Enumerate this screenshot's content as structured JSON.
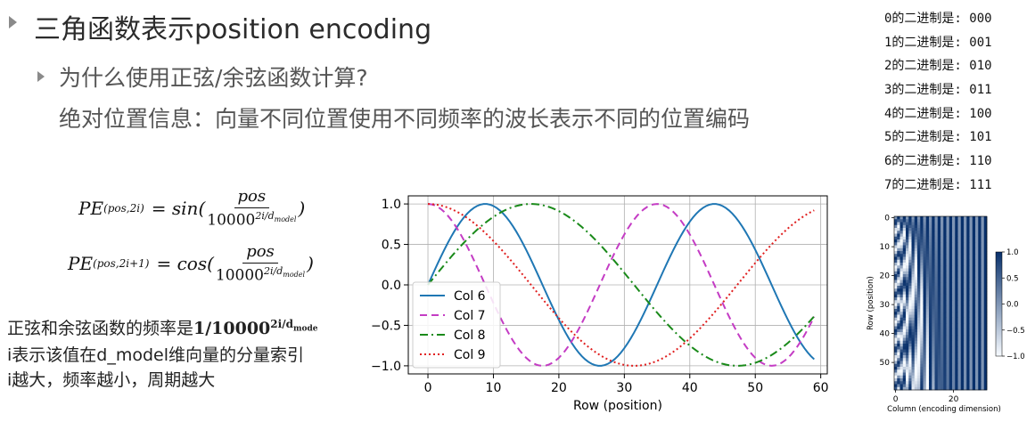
{
  "heading": {
    "title": "三角函数表示position encoding",
    "question": "为什么使用正弦/余弦函数计算?",
    "answer": "绝对位置信息：向量不同位置使用不同频率的波长表示不同的位置编码"
  },
  "binary_table": [
    "0的二进制是: 000",
    "1的二进制是: 001",
    "2的二进制是: 010",
    "3的二进制是: 011",
    "4的二进制是: 100",
    "5的二进制是: 101",
    "6的二进制是: 110",
    "7的二进制是: 111"
  ],
  "formulas": {
    "pe_sin_lhs": "PE",
    "pe_sin_sub": "(pos,2i)",
    "pe_sin_func": "= sin(",
    "pe_cos_lhs": "PE",
    "pe_cos_sub": "(pos,2i+1)",
    "pe_cos_func": "= cos(",
    "numerator": "pos",
    "denominator_base": "10000",
    "denominator_exp": "2i/d",
    "denominator_exp_sub": "model",
    "close": ")"
  },
  "notes": {
    "line1_prefix": "正弦和余弦函数的频率是",
    "line1_value": "1/10000",
    "line1_exp": "2i/d",
    "line1_exp_sub": "mode",
    "line2": "i表示该值在d_model维向量的分量索引",
    "line3": "i越大，频率越小，周期越大"
  },
  "chart_data": [
    {
      "type": "line",
      "xlabel": "Row (position)",
      "ylabel": "",
      "xlim": [
        -3,
        61
      ],
      "ylim": [
        -1.1,
        1.1
      ],
      "xticks": [
        "0",
        "10",
        "20",
        "30",
        "40",
        "50",
        "60"
      ],
      "yticks": [
        "−1.0",
        "−0.5",
        "0.0",
        "0.5",
        "1.0"
      ],
      "grid": true,
      "legend_position": "lower-left",
      "x_range": [
        0,
        59
      ],
      "series": [
        {
          "name": "Col 6",
          "color": "#1f77b4",
          "dash": "solid",
          "function": "sin",
          "period": 35.0,
          "values_at_x0": 0.0
        },
        {
          "name": "Col 7",
          "color": "#c43cc4",
          "dash": "dashed",
          "function": "cos",
          "period": 35.0,
          "values_at_x0": 1.0
        },
        {
          "name": "Col 8",
          "color": "#1a8a1a",
          "dash": "dashdot",
          "function": "sin",
          "period": 63.0,
          "values_at_x0": 0.0
        },
        {
          "name": "Col 9",
          "color": "#e02020",
          "dash": "dotted",
          "function": "cos",
          "period": 63.0,
          "values_at_x0": 1.0
        }
      ]
    },
    {
      "type": "heatmap",
      "xlabel": "Column (encoding dimension)",
      "ylabel": "Row (position)",
      "rows": 60,
      "cols": 32,
      "xticks": [
        "0",
        "20"
      ],
      "yticks": [
        "0",
        "10",
        "20",
        "30",
        "40",
        "50"
      ],
      "colorbar_ticks": [
        "1.0",
        "0.5",
        "0.0",
        "−0.5",
        "−1.0"
      ],
      "colormap": "Blues",
      "vmin": -1.0,
      "vmax": 1.0
    }
  ]
}
